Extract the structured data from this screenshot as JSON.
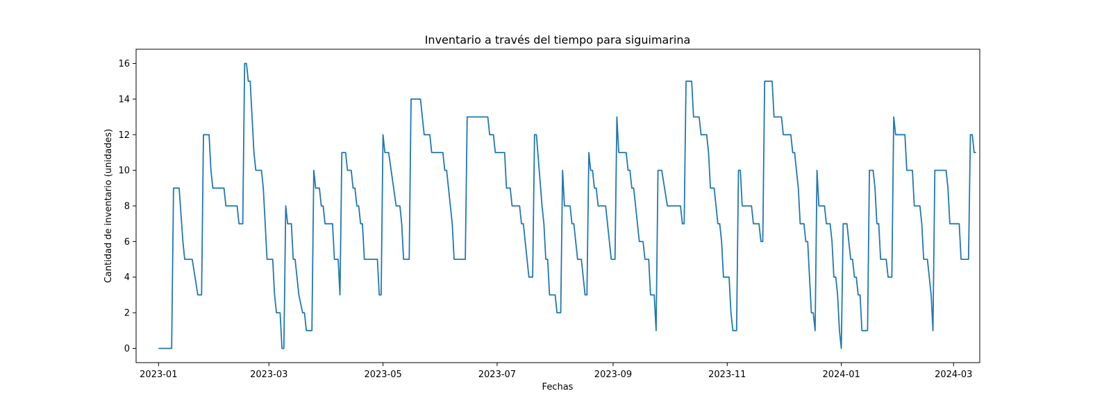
{
  "chart_data": {
    "type": "line",
    "title": "Inventario a través del tiempo para siguimarina",
    "xlabel": "Fechas",
    "ylabel": "Cantidad de inventario (unidades)",
    "xlim": [
      "2022-12-20",
      "2024-03-15"
    ],
    "ylim": [
      -0.8,
      16.8
    ],
    "grid": false,
    "line_color": "#1f77b4",
    "x_ticks": [
      {
        "date": "2023-01-01",
        "label": "2023-01"
      },
      {
        "date": "2023-03-01",
        "label": "2023-03"
      },
      {
        "date": "2023-05-01",
        "label": "2023-05"
      },
      {
        "date": "2023-07-01",
        "label": "2023-07"
      },
      {
        "date": "2023-09-01",
        "label": "2023-09"
      },
      {
        "date": "2023-11-01",
        "label": "2023-11"
      },
      {
        "date": "2024-01-01",
        "label": "2024-01"
      },
      {
        "date": "2024-03-01",
        "label": "2024-03"
      }
    ],
    "y_ticks": [
      0,
      2,
      4,
      6,
      8,
      10,
      12,
      14,
      16
    ],
    "series": [
      {
        "points": [
          [
            "2023-01-01",
            0
          ],
          [
            "2023-01-08",
            0
          ],
          [
            "2023-01-09",
            9
          ],
          [
            "2023-01-12",
            9
          ],
          [
            "2023-01-14",
            6
          ],
          [
            "2023-01-15",
            5
          ],
          [
            "2023-01-19",
            5
          ],
          [
            "2023-01-22",
            3
          ],
          [
            "2023-01-24",
            3
          ],
          [
            "2023-01-25",
            12
          ],
          [
            "2023-01-28",
            12
          ],
          [
            "2023-01-29",
            10
          ],
          [
            "2023-01-30",
            9
          ],
          [
            "2023-02-05",
            9
          ],
          [
            "2023-02-06",
            8
          ],
          [
            "2023-02-12",
            8
          ],
          [
            "2023-02-13",
            7
          ],
          [
            "2023-02-15",
            7
          ],
          [
            "2023-02-16",
            16
          ],
          [
            "2023-02-17",
            16
          ],
          [
            "2023-02-18",
            15
          ],
          [
            "2023-02-19",
            15
          ],
          [
            "2023-02-20",
            13
          ],
          [
            "2023-02-21",
            11
          ],
          [
            "2023-02-22",
            10
          ],
          [
            "2023-02-25",
            10
          ],
          [
            "2023-02-26",
            9
          ],
          [
            "2023-02-28",
            5
          ],
          [
            "2023-03-03",
            5
          ],
          [
            "2023-03-04",
            3
          ],
          [
            "2023-03-05",
            2
          ],
          [
            "2023-03-07",
            2
          ],
          [
            "2023-03-08",
            0
          ],
          [
            "2023-03-09",
            0
          ],
          [
            "2023-03-10",
            8
          ],
          [
            "2023-03-11",
            7
          ],
          [
            "2023-03-13",
            7
          ],
          [
            "2023-03-14",
            5
          ],
          [
            "2023-03-15",
            5
          ],
          [
            "2023-03-17",
            3
          ],
          [
            "2023-03-19",
            2
          ],
          [
            "2023-03-20",
            2
          ],
          [
            "2023-03-21",
            1
          ],
          [
            "2023-03-24",
            1
          ],
          [
            "2023-03-25",
            10
          ],
          [
            "2023-03-26",
            9
          ],
          [
            "2023-03-28",
            9
          ],
          [
            "2023-03-29",
            8
          ],
          [
            "2023-03-30",
            8
          ],
          [
            "2023-03-31",
            7
          ],
          [
            "2023-04-04",
            7
          ],
          [
            "2023-04-05",
            5
          ],
          [
            "2023-04-07",
            5
          ],
          [
            "2023-04-08",
            3
          ],
          [
            "2023-04-09",
            11
          ],
          [
            "2023-04-11",
            11
          ],
          [
            "2023-04-12",
            10
          ],
          [
            "2023-04-14",
            10
          ],
          [
            "2023-04-15",
            9
          ],
          [
            "2023-04-16",
            9
          ],
          [
            "2023-04-17",
            8
          ],
          [
            "2023-04-18",
            8
          ],
          [
            "2023-04-19",
            7
          ],
          [
            "2023-04-20",
            7
          ],
          [
            "2023-04-21",
            5
          ],
          [
            "2023-04-28",
            5
          ],
          [
            "2023-04-29",
            3
          ],
          [
            "2023-04-30",
            3
          ],
          [
            "2023-05-01",
            12
          ],
          [
            "2023-05-02",
            11
          ],
          [
            "2023-05-04",
            11
          ],
          [
            "2023-05-08",
            8
          ],
          [
            "2023-05-10",
            8
          ],
          [
            "2023-05-11",
            7
          ],
          [
            "2023-05-12",
            5
          ],
          [
            "2023-05-15",
            5
          ],
          [
            "2023-05-16",
            14
          ],
          [
            "2023-05-21",
            14
          ],
          [
            "2023-05-23",
            12
          ],
          [
            "2023-05-26",
            12
          ],
          [
            "2023-05-27",
            11
          ],
          [
            "2023-06-02",
            11
          ],
          [
            "2023-06-03",
            10
          ],
          [
            "2023-06-04",
            10
          ],
          [
            "2023-06-07",
            7
          ],
          [
            "2023-06-08",
            5
          ],
          [
            "2023-06-14",
            5
          ],
          [
            "2023-06-15",
            13
          ],
          [
            "2023-06-26",
            13
          ],
          [
            "2023-06-27",
            12
          ],
          [
            "2023-06-29",
            12
          ],
          [
            "2023-06-30",
            11
          ],
          [
            "2023-07-05",
            11
          ],
          [
            "2023-07-06",
            9
          ],
          [
            "2023-07-08",
            9
          ],
          [
            "2023-07-09",
            8
          ],
          [
            "2023-07-13",
            8
          ],
          [
            "2023-07-14",
            7
          ],
          [
            "2023-07-15",
            7
          ],
          [
            "2023-07-18",
            4
          ],
          [
            "2023-07-20",
            4
          ],
          [
            "2023-07-21",
            12
          ],
          [
            "2023-07-22",
            12
          ],
          [
            "2023-07-25",
            8
          ],
          [
            "2023-07-26",
            7
          ],
          [
            "2023-07-27",
            5
          ],
          [
            "2023-07-28",
            5
          ],
          [
            "2023-07-29",
            3
          ],
          [
            "2023-08-01",
            3
          ],
          [
            "2023-08-02",
            2
          ],
          [
            "2023-08-04",
            2
          ],
          [
            "2023-08-05",
            10
          ],
          [
            "2023-08-06",
            8
          ],
          [
            "2023-08-09",
            8
          ],
          [
            "2023-08-10",
            7
          ],
          [
            "2023-08-11",
            7
          ],
          [
            "2023-08-13",
            5
          ],
          [
            "2023-08-15",
            5
          ],
          [
            "2023-08-17",
            3
          ],
          [
            "2023-08-18",
            3
          ],
          [
            "2023-08-19",
            11
          ],
          [
            "2023-08-20",
            10
          ],
          [
            "2023-08-21",
            10
          ],
          [
            "2023-08-22",
            9
          ],
          [
            "2023-08-23",
            9
          ],
          [
            "2023-08-24",
            8
          ],
          [
            "2023-08-28",
            8
          ],
          [
            "2023-08-30",
            6
          ],
          [
            "2023-08-31",
            5
          ],
          [
            "2023-09-02",
            5
          ],
          [
            "2023-09-03",
            13
          ],
          [
            "2023-09-04",
            11
          ],
          [
            "2023-09-08",
            11
          ],
          [
            "2023-09-09",
            10
          ],
          [
            "2023-09-10",
            10
          ],
          [
            "2023-09-11",
            9
          ],
          [
            "2023-09-12",
            9
          ],
          [
            "2023-09-15",
            6
          ],
          [
            "2023-09-17",
            6
          ],
          [
            "2023-09-18",
            5
          ],
          [
            "2023-09-20",
            5
          ],
          [
            "2023-09-21",
            3
          ],
          [
            "2023-09-23",
            3
          ],
          [
            "2023-09-24",
            1
          ],
          [
            "2023-09-25",
            10
          ],
          [
            "2023-09-27",
            10
          ],
          [
            "2023-09-30",
            8
          ],
          [
            "2023-10-07",
            8
          ],
          [
            "2023-10-08",
            7
          ],
          [
            "2023-10-09",
            7
          ],
          [
            "2023-10-10",
            15
          ],
          [
            "2023-10-13",
            15
          ],
          [
            "2023-10-14",
            13
          ],
          [
            "2023-10-17",
            13
          ],
          [
            "2023-10-18",
            12
          ],
          [
            "2023-10-21",
            12
          ],
          [
            "2023-10-22",
            11
          ],
          [
            "2023-10-23",
            9
          ],
          [
            "2023-10-25",
            9
          ],
          [
            "2023-10-27",
            7
          ],
          [
            "2023-10-28",
            7
          ],
          [
            "2023-10-29",
            6
          ],
          [
            "2023-10-30",
            4
          ],
          [
            "2023-11-02",
            4
          ],
          [
            "2023-11-03",
            2
          ],
          [
            "2023-11-04",
            1
          ],
          [
            "2023-11-06",
            1
          ],
          [
            "2023-11-07",
            10
          ],
          [
            "2023-11-08",
            10
          ],
          [
            "2023-11-09",
            8
          ],
          [
            "2023-11-14",
            8
          ],
          [
            "2023-11-15",
            7
          ],
          [
            "2023-11-18",
            7
          ],
          [
            "2023-11-19",
            6
          ],
          [
            "2023-11-20",
            6
          ],
          [
            "2023-11-21",
            15
          ],
          [
            "2023-11-25",
            15
          ],
          [
            "2023-11-26",
            13
          ],
          [
            "2023-11-30",
            13
          ],
          [
            "2023-12-01",
            12
          ],
          [
            "2023-12-05",
            12
          ],
          [
            "2023-12-06",
            11
          ],
          [
            "2023-12-07",
            11
          ],
          [
            "2023-12-09",
            9
          ],
          [
            "2023-12-10",
            7
          ],
          [
            "2023-12-12",
            7
          ],
          [
            "2023-12-13",
            6
          ],
          [
            "2023-12-14",
            6
          ],
          [
            "2023-12-15",
            4
          ],
          [
            "2023-12-16",
            2
          ],
          [
            "2023-12-17",
            2
          ],
          [
            "2023-12-18",
            1
          ],
          [
            "2023-12-19",
            10
          ],
          [
            "2023-12-20",
            8
          ],
          [
            "2023-12-23",
            8
          ],
          [
            "2023-12-24",
            7
          ],
          [
            "2023-12-26",
            7
          ],
          [
            "2023-12-27",
            6
          ],
          [
            "2023-12-28",
            4
          ],
          [
            "2023-12-29",
            4
          ],
          [
            "2023-12-30",
            3
          ],
          [
            "2023-12-31",
            1
          ],
          [
            "2024-01-01",
            0
          ],
          [
            "2024-01-02",
            7
          ],
          [
            "2024-01-04",
            7
          ],
          [
            "2024-01-06",
            5
          ],
          [
            "2024-01-07",
            5
          ],
          [
            "2024-01-08",
            4
          ],
          [
            "2024-01-09",
            4
          ],
          [
            "2024-01-10",
            3
          ],
          [
            "2024-01-11",
            3
          ],
          [
            "2024-01-12",
            1
          ],
          [
            "2024-01-15",
            1
          ],
          [
            "2024-01-16",
            10
          ],
          [
            "2024-01-18",
            10
          ],
          [
            "2024-01-19",
            9
          ],
          [
            "2024-01-20",
            7
          ],
          [
            "2024-01-21",
            7
          ],
          [
            "2024-01-22",
            5
          ],
          [
            "2024-01-25",
            5
          ],
          [
            "2024-01-26",
            4
          ],
          [
            "2024-01-28",
            4
          ],
          [
            "2024-01-29",
            13
          ],
          [
            "2024-01-30",
            12
          ],
          [
            "2024-02-04",
            12
          ],
          [
            "2024-02-05",
            10
          ],
          [
            "2024-02-08",
            10
          ],
          [
            "2024-02-09",
            8
          ],
          [
            "2024-02-12",
            8
          ],
          [
            "2024-02-13",
            7
          ],
          [
            "2024-02-14",
            5
          ],
          [
            "2024-02-16",
            5
          ],
          [
            "2024-02-17",
            4
          ],
          [
            "2024-02-18",
            3
          ],
          [
            "2024-02-19",
            1
          ],
          [
            "2024-02-20",
            10
          ],
          [
            "2024-02-26",
            10
          ],
          [
            "2024-02-27",
            9
          ],
          [
            "2024-02-28",
            7
          ],
          [
            "2024-03-04",
            7
          ],
          [
            "2024-03-05",
            5
          ],
          [
            "2024-03-09",
            5
          ],
          [
            "2024-03-10",
            12
          ],
          [
            "2024-03-11",
            12
          ],
          [
            "2024-03-12",
            11
          ],
          [
            "2024-03-13",
            11
          ]
        ]
      }
    ]
  }
}
